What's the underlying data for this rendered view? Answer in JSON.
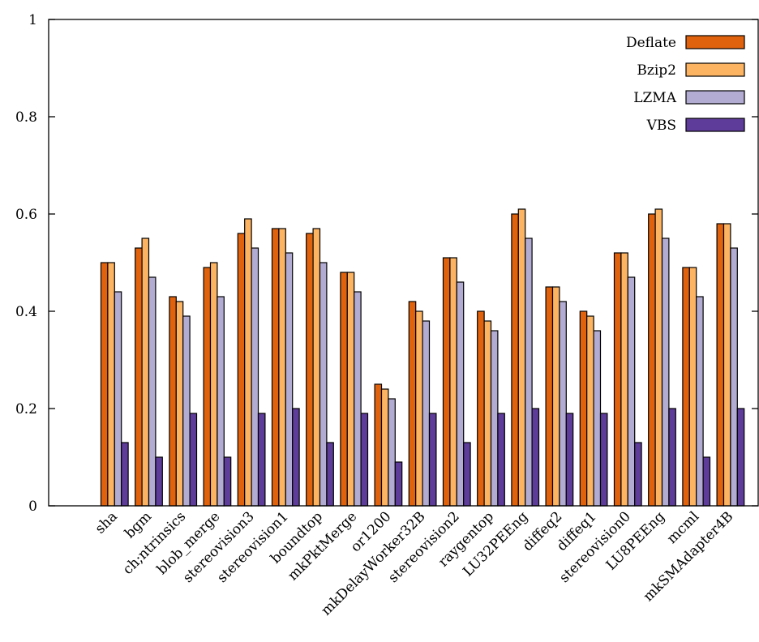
{
  "chart_data": {
    "type": "bar",
    "title": "",
    "xlabel": "",
    "ylabel": "",
    "ylim": [
      0,
      1
    ],
    "yticks": [
      "0",
      "0.2",
      "0.4",
      "0.6",
      "0.8",
      "1"
    ],
    "grid": false,
    "legend_position": "top-right",
    "categories": [
      "sha",
      "bgm",
      "ch;ntrinsics",
      "blob_merge",
      "stereovision3",
      "stereovision1",
      "boundtop",
      "mkPktMerge",
      "or1200",
      "mkDelayWorker32B",
      "stereovision2",
      "raygentop",
      "LU32PEEng",
      "diffeq2",
      "diffeq1",
      "stereovision0",
      "LU8PEEng",
      "mcml",
      "mkSMAdapter4B"
    ],
    "series": [
      {
        "name": "Deflate",
        "color": "#e0620d",
        "values": [
          0.5,
          0.53,
          0.43,
          0.49,
          0.56,
          0.57,
          0.56,
          0.48,
          0.25,
          0.42,
          0.51,
          0.4,
          0.6,
          0.45,
          0.4,
          0.52,
          0.6,
          0.49,
          0.58
        ]
      },
      {
        "name": "Bzip2",
        "color": "#fdb462",
        "values": [
          0.5,
          0.55,
          0.42,
          0.5,
          0.59,
          0.57,
          0.57,
          0.48,
          0.24,
          0.4,
          0.51,
          0.38,
          0.61,
          0.45,
          0.39,
          0.52,
          0.61,
          0.49,
          0.58
        ]
      },
      {
        "name": "LZMA",
        "color": "#b2abd2",
        "values": [
          0.44,
          0.47,
          0.39,
          0.43,
          0.53,
          0.52,
          0.5,
          0.44,
          0.22,
          0.38,
          0.46,
          0.36,
          0.55,
          0.42,
          0.36,
          0.47,
          0.55,
          0.43,
          0.53
        ]
      },
      {
        "name": "VBS",
        "color": "#5e3c99",
        "values": [
          0.13,
          0.1,
          0.19,
          0.1,
          0.19,
          0.2,
          0.13,
          0.19,
          0.09,
          0.19,
          0.13,
          0.19,
          0.2,
          0.19,
          0.19,
          0.13,
          0.2,
          0.1,
          0.2
        ]
      }
    ]
  }
}
